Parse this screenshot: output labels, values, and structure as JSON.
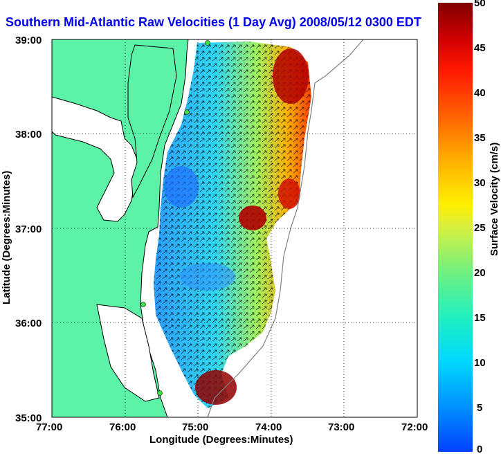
{
  "title": "Southern Mid-Atlantic Raw Velocities (1 Day Avg) 2008/05/12 0300 EDT",
  "x_axis": {
    "label": "Longitude (Degrees:Minutes)",
    "ticks": [
      "77:00",
      "76:00",
      "75:00",
      "74:00",
      "73:00",
      "72:00"
    ]
  },
  "y_axis": {
    "label": "Latitude (Degrees:Minutes)",
    "ticks": [
      "39:00",
      "38:00",
      "37:00",
      "36:00",
      "35:00"
    ]
  },
  "colorbar": {
    "label": "Surface Velocity (cm/s)",
    "ticks": [
      "50",
      "45",
      "40",
      "35",
      "30",
      "25",
      "20",
      "15",
      "10",
      "5",
      "0"
    ],
    "range": [
      0,
      50
    ],
    "colors": [
      "#0040ff",
      "#00d8ff",
      "#70f080",
      "#fff000",
      "#ff6000",
      "#800000"
    ]
  },
  "map": {
    "land_color": "#5cf2a8",
    "grid": "dotted",
    "site_marker_color": "#40e040",
    "legend": "right colorbar"
  }
}
